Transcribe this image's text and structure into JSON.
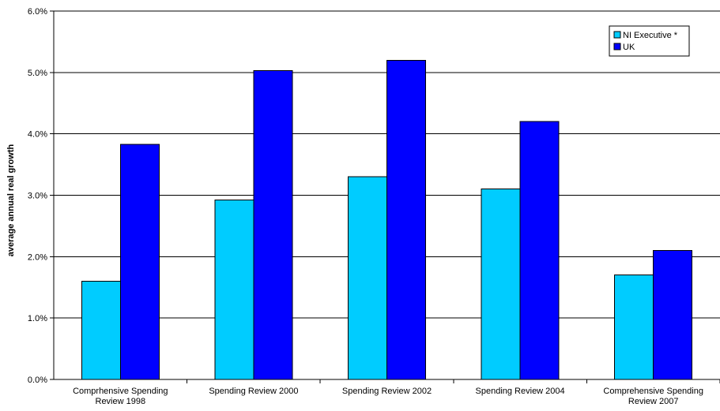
{
  "chart_data": {
    "type": "bar",
    "categories": [
      [
        "Comprhensive Spending",
        "Review 1998"
      ],
      [
        "Spending Review 2000"
      ],
      [
        "Spending Review 2002"
      ],
      [
        "Spending Review 2004"
      ],
      [
        "Comprehensive Spending",
        "Review 2007"
      ]
    ],
    "series": [
      {
        "name": "NI Executive *",
        "color": "#00CCFF",
        "values": [
          1.6,
          2.92,
          3.3,
          3.1,
          1.7
        ]
      },
      {
        "name": "UK",
        "color": "#0000FF",
        "values": [
          3.83,
          5.03,
          5.2,
          4.2,
          2.1
        ]
      }
    ],
    "title": "",
    "xlabel": "",
    "ylabel": "average annual real growth",
    "ylim": [
      0,
      6
    ],
    "yticks": [
      "0.0%",
      "1.0%",
      "2.0%",
      "3.0%",
      "4.0%",
      "5.0%",
      "6.0%"
    ],
    "grid": true,
    "legend_position": "top-right"
  }
}
